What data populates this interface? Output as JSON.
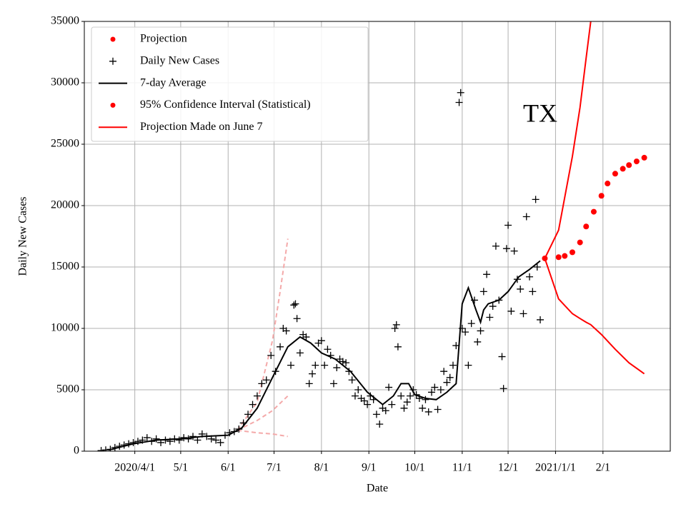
{
  "chart_data": {
    "type": "scatter",
    "annotation": "TX",
    "x_label": "Date",
    "y_label": "Daily New Cases",
    "xlim": [
      "2020-02-28",
      "2021-03-17"
    ],
    "xticks": [
      {
        "value": "2020-04-01",
        "label": "2020/4/1"
      },
      {
        "value": "2020-05-01",
        "label": "5/1"
      },
      {
        "value": "2020-06-01",
        "label": "6/1"
      },
      {
        "value": "2020-07-01",
        "label": "7/1"
      },
      {
        "value": "2020-08-01",
        "label": "8/1"
      },
      {
        "value": "2020-09-01",
        "label": "9/1"
      },
      {
        "value": "2020-10-01",
        "label": "10/1"
      },
      {
        "value": "2020-11-01",
        "label": "11/1"
      },
      {
        "value": "2020-12-01",
        "label": "12/1"
      },
      {
        "value": "2021-01-01",
        "label": "2021/1/1"
      },
      {
        "value": "2021-02-01",
        "label": "2/1"
      }
    ],
    "ylim": [
      0,
      35000
    ],
    "yticks": [
      0,
      5000,
      10000,
      15000,
      20000,
      25000,
      30000,
      35000
    ],
    "grid": true,
    "legend": "upper left",
    "series": [
      {
        "name": "Projection",
        "color": "#ff0000",
        "legend_marker": "dot",
        "style": "dot",
        "x": [
          "2020-12-25",
          "2021-01-03",
          "2021-01-07",
          "2021-01-12",
          "2021-01-17",
          "2021-01-21",
          "2021-01-26",
          "2021-01-31",
          "2021-02-04",
          "2021-02-09",
          "2021-02-14",
          "2021-02-18",
          "2021-02-23",
          "2021-02-28"
        ],
        "values": [
          15700,
          15800,
          15900,
          16200,
          17000,
          18300,
          19500,
          20800,
          21800,
          22600,
          23000,
          23300,
          23600,
          23900
        ]
      },
      {
        "name": "Daily New Cases",
        "color": "#000000",
        "legend_marker": "plus",
        "style": "plus",
        "x": [
          "2020-03-10",
          "2020-03-13",
          "2020-03-16",
          "2020-03-19",
          "2020-03-22",
          "2020-03-25",
          "2020-03-28",
          "2020-03-31",
          "2020-04-03",
          "2020-04-06",
          "2020-04-09",
          "2020-04-12",
          "2020-04-15",
          "2020-04-18",
          "2020-04-21",
          "2020-04-24",
          "2020-04-27",
          "2020-04-30",
          "2020-05-03",
          "2020-05-06",
          "2020-05-09",
          "2020-05-12",
          "2020-05-15",
          "2020-05-18",
          "2020-05-21",
          "2020-05-24",
          "2020-05-27",
          "2020-05-30",
          "2020-06-02",
          "2020-06-05",
          "2020-06-08",
          "2020-06-11",
          "2020-06-14",
          "2020-06-17",
          "2020-06-20",
          "2020-06-23",
          "2020-06-26",
          "2020-06-29",
          "2020-07-02",
          "2020-07-05",
          "2020-07-07",
          "2020-07-09",
          "2020-07-12",
          "2020-07-14",
          "2020-07-15",
          "2020-07-16",
          "2020-07-18",
          "2020-07-20",
          "2020-07-22",
          "2020-07-24",
          "2020-07-26",
          "2020-07-28",
          "2020-07-30",
          "2020-08-01",
          "2020-08-03",
          "2020-08-05",
          "2020-08-07",
          "2020-08-09",
          "2020-08-11",
          "2020-08-13",
          "2020-08-15",
          "2020-08-17",
          "2020-08-19",
          "2020-08-21",
          "2020-08-23",
          "2020-08-25",
          "2020-08-27",
          "2020-08-29",
          "2020-08-31",
          "2020-09-02",
          "2020-09-04",
          "2020-09-06",
          "2020-09-08",
          "2020-09-10",
          "2020-09-12",
          "2020-09-14",
          "2020-09-16",
          "2020-09-18",
          "2020-09-19",
          "2020-09-20",
          "2020-09-22",
          "2020-09-24",
          "2020-09-26",
          "2020-09-28",
          "2020-09-30",
          "2020-10-02",
          "2020-10-04",
          "2020-10-06",
          "2020-10-08",
          "2020-10-10",
          "2020-10-12",
          "2020-10-14",
          "2020-10-16",
          "2020-10-18",
          "2020-10-20",
          "2020-10-22",
          "2020-10-24",
          "2020-10-26",
          "2020-10-28",
          "2020-10-30",
          "2020-10-31",
          "2020-11-01",
          "2020-11-03",
          "2020-11-05",
          "2020-11-07",
          "2020-11-09",
          "2020-11-11",
          "2020-11-13",
          "2020-11-15",
          "2020-11-17",
          "2020-11-19",
          "2020-11-21",
          "2020-11-23",
          "2020-11-25",
          "2020-11-27",
          "2020-11-28",
          "2020-11-30",
          "2020-12-01",
          "2020-12-03",
          "2020-12-05",
          "2020-12-07",
          "2020-12-09",
          "2020-12-11",
          "2020-12-13",
          "2020-12-15",
          "2020-12-17",
          "2020-12-19",
          "2020-12-20",
          "2020-12-22"
        ],
        "values": [
          50,
          100,
          150,
          300,
          400,
          500,
          600,
          700,
          800,
          900,
          1100,
          800,
          1000,
          700,
          900,
          800,
          1000,
          900,
          1100,
          1000,
          1200,
          900,
          1400,
          1200,
          1000,
          900,
          700,
          1300,
          1500,
          1600,
          1800,
          2300,
          3000,
          3800,
          4500,
          5500,
          5800,
          7800,
          6500,
          8500,
          10000,
          9800,
          7000,
          11900,
          12000,
          10800,
          8000,
          9500,
          9300,
          5500,
          6300,
          7000,
          8800,
          9000,
          7000,
          8300,
          7800,
          5500,
          6800,
          7500,
          7300,
          7200,
          6500,
          5800,
          4500,
          5000,
          4300,
          4100,
          3800,
          4500,
          4200,
          3000,
          2200,
          3500,
          3300,
          5200,
          3800,
          10000,
          10300,
          8500,
          4500,
          3500,
          4000,
          4500,
          5000,
          4600,
          4300,
          3500,
          4200,
          3200,
          4800,
          5200,
          3400,
          5000,
          6500,
          5600,
          6000,
          7000,
          8600,
          28400,
          29200,
          10000,
          9700,
          7000,
          10400,
          12300,
          8900,
          9800,
          13000,
          14400,
          10900,
          11800,
          16700,
          12300,
          7700,
          5100,
          16500,
          18400,
          11400,
          16300,
          14000,
          13200,
          11200,
          19100,
          14200,
          13000,
          20500,
          15000,
          10700
        ]
      },
      {
        "name": "7-day Average",
        "color": "#000000",
        "legend_marker": "line",
        "style": "line",
        "x": [
          "2020-03-15",
          "2020-03-31",
          "2020-04-15",
          "2020-05-01",
          "2020-05-15",
          "2020-06-01",
          "2020-06-10",
          "2020-06-20",
          "2020-06-30",
          "2020-07-10",
          "2020-07-18",
          "2020-07-25",
          "2020-08-01",
          "2020-08-10",
          "2020-08-20",
          "2020-08-31",
          "2020-09-10",
          "2020-09-17",
          "2020-09-22",
          "2020-09-27",
          "2020-10-01",
          "2020-10-08",
          "2020-10-15",
          "2020-10-22",
          "2020-10-28",
          "2020-11-01",
          "2020-11-05",
          "2020-11-10",
          "2020-11-13",
          "2020-11-15",
          "2020-11-18",
          "2020-11-25",
          "2020-12-01",
          "2020-12-08",
          "2020-12-15",
          "2020-12-22"
        ],
        "values": [
          100,
          600,
          900,
          1000,
          1200,
          1300,
          1900,
          3500,
          6000,
          8500,
          9300,
          8800,
          8000,
          7500,
          6500,
          4800,
          3800,
          4500,
          5500,
          5500,
          4600,
          4300,
          4200,
          4800,
          5500,
          12000,
          13300,
          11500,
          10500,
          11500,
          12000,
          12300,
          13000,
          14200,
          14800,
          15500
        ]
      },
      {
        "name": "95% Confidence Interval (Statistical)",
        "color": "#ff0000",
        "legend_marker": "dot",
        "style": "band-lines",
        "x": [
          "2020-12-25",
          "2021-01-03",
          "2021-01-12",
          "2021-01-17",
          "2021-01-21",
          "2021-01-24",
          "2021-01-31",
          "2021-02-09",
          "2021-02-18",
          "2021-02-28"
        ],
        "values": [
          15700,
          18000,
          24000,
          28000,
          32000,
          35000,
          null,
          null,
          null,
          null
        ],
        "lower": [
          15700,
          12400,
          11200,
          10800,
          10500,
          10300,
          9500,
          8300,
          7200,
          6300
        ]
      },
      {
        "name": "Projection Made on June 7",
        "color": "#ff0000",
        "line_color": "#f4a9a9",
        "legend_marker": "line",
        "style": "dashed-lines",
        "x": [
          "2020-06-07",
          "2020-06-20",
          "2020-06-30",
          "2020-07-05",
          "2020-07-10"
        ],
        "values": [
          1700,
          2500,
          3300,
          3900,
          4500
        ],
        "upper": [
          1700,
          4000,
          9000,
          13000,
          17300
        ],
        "lower": [
          1700,
          1500,
          1400,
          1300,
          1200
        ]
      }
    ]
  }
}
